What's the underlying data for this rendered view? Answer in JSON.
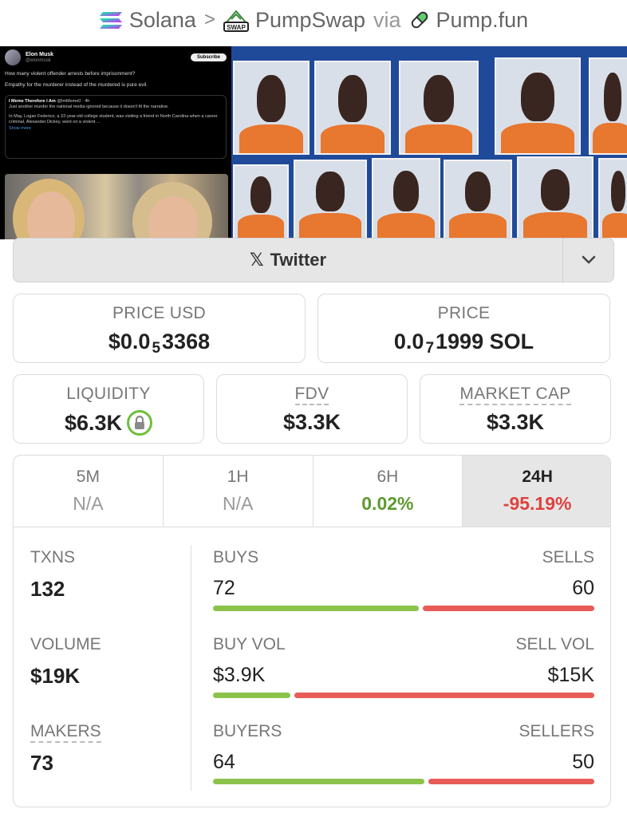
{
  "breadcrumb": {
    "chain": "Solana",
    "separator": ">",
    "dex": "PumpSwap",
    "via": "via",
    "launchpad": "Pump.fun"
  },
  "banner": {
    "tweet": {
      "author": "Elon Musk",
      "handle": "@elonmusk",
      "subscribe": "Subscribe",
      "line1": "How many violent offender arrests before imprisonment?",
      "line2": "Empathy for the murderer instead of the murdered is pure evil.",
      "quote_author": "I Meme Therefore I Am",
      "quote_handle": "@ImMeme0 · 4h",
      "quote_text1": "Just another murder the national media ignored because it doesn't fit the narrative.",
      "quote_text2": "In May, Logan Federico, a 22-year-old college student, was visiting a friend in North Carolina when a career criminal, Alexander Dickey, went on a violent ...",
      "show_more": "Show more"
    }
  },
  "social": {
    "twitter_label": "Twitter",
    "x_glyph": "𝕏"
  },
  "stats": {
    "price_usd": {
      "label": "PRICE USD",
      "prefix": "$0.0",
      "zeros": "5",
      "digits": "3368"
    },
    "price_sol": {
      "label": "PRICE",
      "prefix": "0.0",
      "zeros": "7",
      "digits": "1999 SOL"
    },
    "liquidity": {
      "label": "LIQUIDITY",
      "value": "$6.3K"
    },
    "fdv": {
      "label": "FDV",
      "value": "$3.3K"
    },
    "market_cap": {
      "label": "MARKET CAP",
      "value": "$3.3K"
    }
  },
  "timeframes": [
    {
      "label": "5M",
      "value": "N/A"
    },
    {
      "label": "1H",
      "value": "N/A"
    },
    {
      "label": "6H",
      "value": "0.02%"
    },
    {
      "label": "24H",
      "value": "-95.19%"
    }
  ],
  "txns": {
    "label": "TXNS",
    "value": "132",
    "buys_label": "BUYS",
    "buys": "72",
    "sells_label": "SELLS",
    "sells": "60",
    "buy_share": 0.545
  },
  "volume": {
    "label": "VOLUME",
    "value": "$19K",
    "buy_label": "BUY VOL",
    "buy": "$3.9K",
    "sell_label": "SELL VOL",
    "sell": "$15K",
    "buy_share": 0.205
  },
  "makers": {
    "label": "MAKERS",
    "value": "73",
    "buyers_label": "BUYERS",
    "buyers": "64",
    "sellers_label": "SELLERS",
    "sellers": "50",
    "buy_share": 0.561
  },
  "colors": {
    "positive": "#5e9a2e",
    "negative": "#e0413f",
    "buy_bar": "#8bc34a",
    "sell_bar": "#e85c58"
  }
}
